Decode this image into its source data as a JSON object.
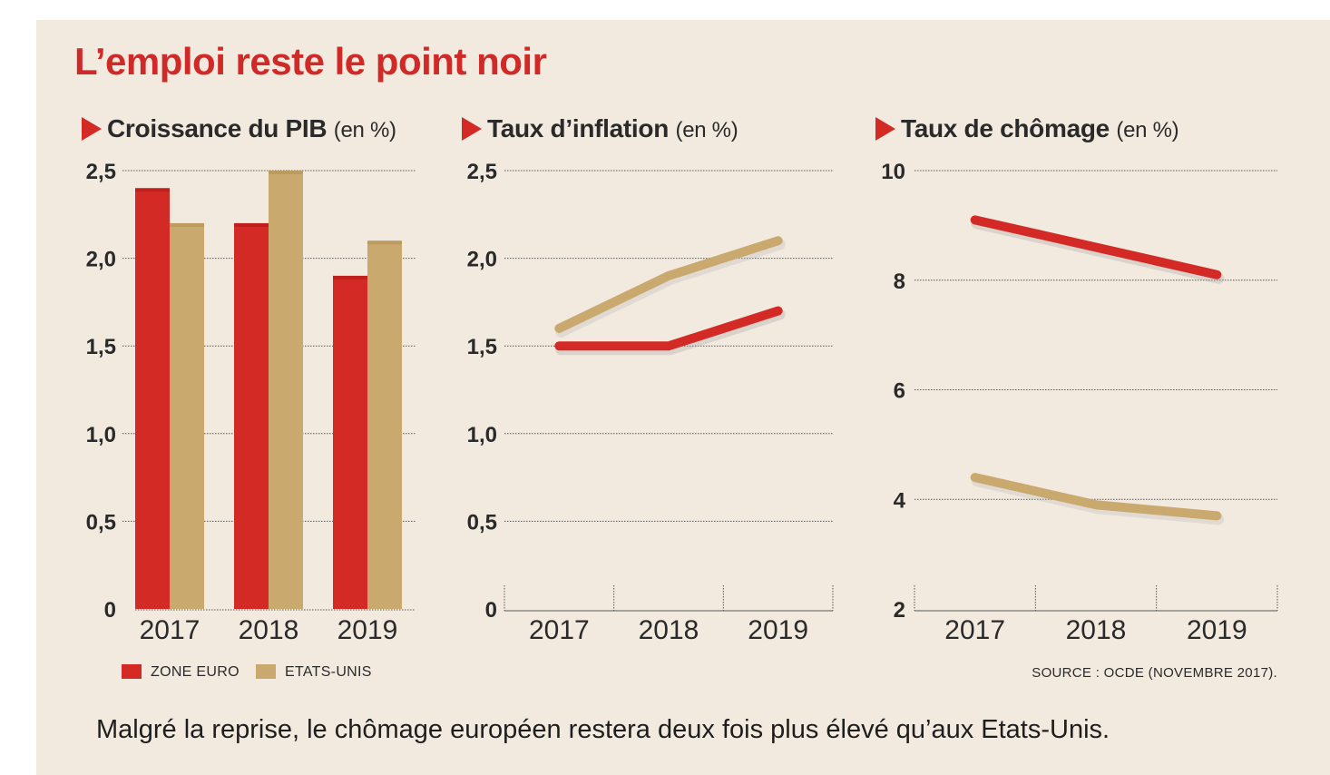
{
  "title": "L’emploi reste le point noir",
  "colors": {
    "zone_euro": "#d32a26",
    "etats_unis": "#c9a96e",
    "background": "#f3eadf",
    "title_red": "#cf2a28"
  },
  "legend": [
    {
      "label": "ZONE EURO",
      "color": "#d32a26"
    },
    {
      "label": "ETATS-UNIS",
      "color": "#c9a96e"
    }
  ],
  "source": "SOURCE : OCDE (NOVEMBRE 2017).",
  "caption": "Malgré la reprise, le chômage européen restera deux fois plus élevé qu’aux Etats-Unis.",
  "chart_data": [
    {
      "type": "bar",
      "title": "Croissance du PIB",
      "unit": "(en %)",
      "categories": [
        "2017",
        "2018",
        "2019"
      ],
      "series": [
        {
          "name": "ZONE EURO",
          "values": [
            2.4,
            2.2,
            1.9
          ]
        },
        {
          "name": "ETATS-UNIS",
          "values": [
            2.2,
            2.5,
            2.1
          ]
        }
      ],
      "yticks": [
        "2,5",
        "2,0",
        "1,5",
        "1,0",
        "0,5",
        "0"
      ],
      "ylim": [
        0,
        2.5
      ],
      "grid": true
    },
    {
      "type": "line",
      "title": "Taux d’inflation",
      "unit": "(en %)",
      "categories": [
        "2017",
        "2018",
        "2019"
      ],
      "series": [
        {
          "name": "ZONE EURO",
          "values": [
            1.5,
            1.5,
            1.7
          ]
        },
        {
          "name": "ETATS-UNIS",
          "values": [
            1.6,
            1.9,
            2.1
          ]
        }
      ],
      "yticks": [
        "2,5",
        "2,0",
        "1,5",
        "1,0",
        "0,5",
        "0"
      ],
      "ylim": [
        0,
        2.5
      ],
      "grid": true
    },
    {
      "type": "line",
      "title": "Taux de chômage",
      "unit": "(en %)",
      "categories": [
        "2017",
        "2018",
        "2019"
      ],
      "series": [
        {
          "name": "ZONE EURO",
          "values": [
            9.1,
            8.6,
            8.1
          ]
        },
        {
          "name": "ETATS-UNIS",
          "values": [
            4.4,
            3.9,
            3.7
          ]
        }
      ],
      "yticks": [
        "10",
        "8",
        "6",
        "4",
        "2"
      ],
      "ylim": [
        2,
        10
      ],
      "grid": true
    }
  ]
}
